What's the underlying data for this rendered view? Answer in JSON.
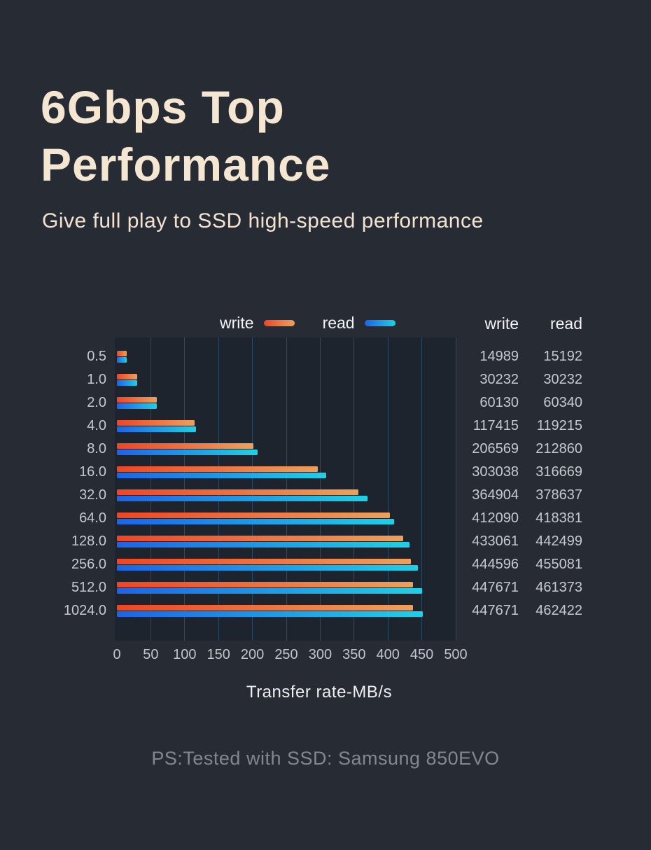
{
  "page": {
    "background": "#272b33",
    "title_line1": "6Gbps Top",
    "title_line2": "Performance",
    "title_color": "#f5e6d2",
    "subtitle": "Give full play to SSD high-speed performance",
    "subtitle_color": "#f2e3d1",
    "footer": "PS:Tested with SSD: Samsung 850EVO",
    "footer_color": "#84878d"
  },
  "legend": {
    "write_label": "write",
    "read_label": "read"
  },
  "table": {
    "write_header": "write",
    "read_header": "read"
  },
  "chart_data": {
    "type": "bar",
    "orientation": "horizontal",
    "title": "",
    "xlabel": "Transfer rate-MB/s",
    "ylabel": "",
    "xlim": [
      0,
      500
    ],
    "xticks": [
      "0",
      "50",
      "100",
      "150",
      "200",
      "250",
      "300",
      "350",
      "400",
      "450",
      "500"
    ],
    "grid": "vertical",
    "legend_position": "top",
    "plot_bg": "#1e242e",
    "gridline_color": "#2c4a66",
    "categories": [
      "0.5",
      "1.0",
      "2.0",
      "4.0",
      "8.0",
      "16.0",
      "32.0",
      "64.0",
      "128.0",
      "256.0",
      "512.0",
      "1024.0"
    ],
    "series": [
      {
        "name": "write",
        "values": [
          14989,
          30232,
          60130,
          117415,
          206569,
          303038,
          364904,
          412090,
          433061,
          444596,
          447671,
          447671
        ],
        "gradient": [
          "#f04524",
          "#eda05c"
        ]
      },
      {
        "name": "read",
        "values": [
          15192,
          30232,
          60340,
          119215,
          212860,
          316669,
          378637,
          418381,
          442499,
          455081,
          461373,
          462422
        ],
        "gradient": [
          "#1d64e8",
          "#1fd0e6"
        ]
      }
    ],
    "bar_value_divisor": 1024
  }
}
